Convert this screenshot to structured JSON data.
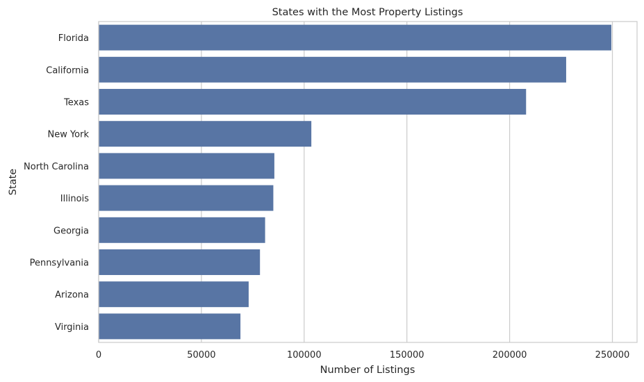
{
  "chart_data": {
    "type": "bar",
    "orientation": "horizontal",
    "title": "States with the Most Property Listings",
    "xlabel": "Number of Listings",
    "ylabel": "State",
    "categories": [
      "Florida",
      "California",
      "Texas",
      "New York",
      "North Carolina",
      "Illinois",
      "Georgia",
      "Pennsylvania",
      "Arizona",
      "Virginia"
    ],
    "values": [
      249500,
      227500,
      208000,
      103500,
      85500,
      85000,
      81000,
      78500,
      73000,
      69000
    ],
    "xlim": [
      0,
      262000
    ],
    "xticks": [
      0,
      50000,
      100000,
      150000,
      200000,
      250000
    ],
    "xtick_labels": [
      "0",
      "50000",
      "100000",
      "150000",
      "200000",
      "250000"
    ],
    "grid": "vertical",
    "bar_color": "#5875a4"
  }
}
